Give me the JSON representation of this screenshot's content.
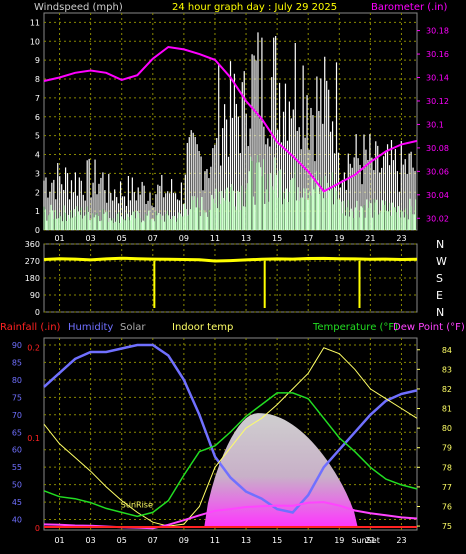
{
  "header": {
    "left_label": "Windspeed (mph)",
    "center_label": "24 hour graph day : July 29 2025",
    "right_label": "Barometer (.in)"
  },
  "colors": {
    "wind": "#ffffff",
    "gust": "#ffffff",
    "barometer": "#ff00ff",
    "direction": "#ffff00",
    "rain": "#ff2222",
    "humidity": "#7070ff",
    "solar": "#cccccc",
    "indoor_temp": "#ffff66",
    "temperature": "#22dd22",
    "dewpoint": "#ff44ff",
    "grid": "#888800"
  },
  "chart_data": [
    {
      "type": "line",
      "name": "wind-barometer",
      "x_ticks": [
        "01",
        "03",
        "05",
        "07",
        "09",
        "11",
        "13",
        "15",
        "17",
        "19",
        "21",
        "23"
      ],
      "xlim": [
        0,
        24
      ],
      "y_left_label": "Windspeed (mph)",
      "y_left_ticks": [
        0,
        1,
        2,
        3,
        4,
        5,
        6,
        7,
        8,
        9,
        10,
        11
      ],
      "ylim_left": [
        0,
        11.5
      ],
      "y_right_label": "Barometer (.in)",
      "y_right_ticks": [
        "30.02",
        "30.04",
        "30.06",
        "30.08",
        "30.1",
        "30.12",
        "30.14",
        "30.16",
        "30.18"
      ],
      "ylim_right": [
        30.01,
        30.195
      ],
      "series": [
        {
          "name": "Barometer (.in)",
          "axis": "right",
          "x": [
            0,
            1,
            2,
            3,
            4,
            5,
            6,
            7,
            8,
            9,
            10,
            11,
            12,
            13,
            14,
            15,
            16,
            17,
            18,
            19,
            20,
            21,
            22,
            23,
            24
          ],
          "values": [
            30.137,
            30.14,
            30.144,
            30.146,
            30.144,
            30.138,
            30.142,
            30.156,
            30.166,
            30.164,
            30.16,
            30.155,
            30.14,
            30.12,
            30.105,
            30.085,
            30.073,
            30.06,
            30.043,
            30.05,
            30.057,
            30.068,
            30.077,
            30.083,
            30.086
          ]
        }
      ]
    },
    {
      "type": "line",
      "name": "wind-direction",
      "y_ticks": [
        "360",
        "270",
        "180",
        "90",
        "0"
      ],
      "ylim": [
        0,
        360
      ],
      "compass_labels": [
        "N",
        "W",
        "S",
        "E",
        "N"
      ],
      "x": [
        0,
        1,
        2,
        3,
        4,
        5,
        6,
        7,
        8,
        9,
        10,
        11,
        12,
        13,
        14,
        15,
        16,
        17,
        18,
        19,
        20,
        21,
        22,
        23,
        24
      ],
      "values": [
        278,
        282,
        280,
        276,
        281,
        285,
        282,
        280,
        279,
        278,
        277,
        270,
        272,
        276,
        279,
        281,
        280,
        283,
        284,
        282,
        281,
        279,
        280,
        278,
        279
      ]
    },
    {
      "type": "line",
      "name": "temperature-humidity",
      "x_ticks": [
        "01",
        "03",
        "05",
        "07",
        "09",
        "11",
        "13",
        "15",
        "17",
        "19",
        "21",
        "23"
      ],
      "xlim": [
        0,
        24
      ],
      "sunrise_label": "SunRise",
      "sunset_label": "SunSet",
      "sunrise_hour": 6.1,
      "sunset_hour": 20.3,
      "legend": [
        "Rainfall (.in)",
        "Humidity",
        "Solar",
        "Indoor temp",
        "Temperature (°F)",
        "Dew Point (°F)"
      ],
      "y_left_ticks": [
        40,
        45,
        50,
        55,
        60,
        65,
        70,
        75,
        80,
        85,
        90
      ],
      "ylim_left": [
        37,
        92
      ],
      "y_rain_ticks": [
        "0",
        "0.1",
        "0.2"
      ],
      "y_right_ticks": [
        75,
        76,
        77,
        78,
        79,
        80,
        81,
        82,
        83,
        84
      ],
      "ylim_right": [
        74.8,
        84.6
      ],
      "series": [
        {
          "name": "Humidity",
          "axis": "left",
          "x": [
            0,
            1,
            2,
            3,
            4,
            5,
            6,
            7,
            8,
            9,
            10,
            11,
            12,
            13,
            14,
            15,
            16,
            17,
            18,
            19,
            20,
            21,
            22,
            23,
            24
          ],
          "values": [
            78,
            82,
            86,
            88,
            88,
            89,
            90,
            90,
            87,
            80,
            70,
            58,
            52,
            48,
            46,
            43,
            42,
            47,
            55,
            60,
            65,
            70,
            74,
            76,
            77
          ]
        },
        {
          "name": "Indoor temp",
          "axis": "right",
          "x": [
            0,
            1,
            2,
            3,
            4,
            5,
            6,
            7,
            8,
            9,
            10,
            11,
            12,
            13,
            14,
            15,
            16,
            17,
            18,
            19,
            20,
            21,
            22,
            23,
            24
          ],
          "values": [
            80.2,
            79.2,
            78.5,
            77.8,
            77.0,
            76.3,
            75.7,
            75.2,
            75.0,
            75.1,
            76.0,
            78.0,
            79.0,
            80.0,
            80.5,
            81.2,
            82.0,
            82.8,
            84.1,
            83.8,
            83.0,
            82.0,
            81.5,
            81.0,
            80.5
          ]
        },
        {
          "name": "Temperature (°F)",
          "axis": "right",
          "x": [
            0,
            1,
            2,
            3,
            4,
            5,
            6,
            7,
            8,
            9,
            10,
            11,
            12,
            13,
            14,
            15,
            16,
            17,
            18,
            19,
            20,
            21,
            22,
            23,
            24
          ],
          "values": [
            76.8,
            76.5,
            76.4,
            76.2,
            75.9,
            75.7,
            75.5,
            75.7,
            76.3,
            77.6,
            78.8,
            79.1,
            79.8,
            80.6,
            81.2,
            81.8,
            81.8,
            81.5,
            80.5,
            79.5,
            78.8,
            78.0,
            77.4,
            77.1,
            76.9
          ]
        },
        {
          "name": "Dew Point (°F)",
          "axis": "left",
          "x": [
            0,
            1,
            2,
            3,
            4,
            5,
            6,
            7,
            8,
            9,
            10,
            11,
            12,
            13,
            14,
            15,
            16,
            17,
            18,
            19,
            20,
            21,
            22,
            23,
            24
          ],
          "values": [
            38.6,
            38.5,
            38.3,
            38.2,
            38.0,
            37.8,
            37.7,
            37.5,
            38.5,
            39.8,
            41.2,
            42.5,
            43.0,
            43.6,
            43.8,
            44.0,
            43.9,
            44.8,
            45.0,
            44.0,
            42.6,
            41.8,
            41.2,
            40.6,
            40.3
          ]
        },
        {
          "name": "Rainfall (.in)",
          "axis": "rain",
          "x": [
            0,
            24
          ],
          "values": [
            0,
            0
          ]
        }
      ]
    }
  ]
}
